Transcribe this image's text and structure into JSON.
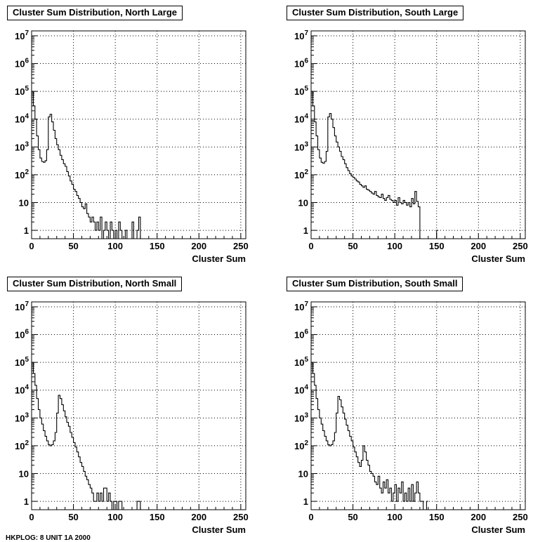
{
  "chart_data": [
    {
      "type": "line",
      "style": "step-histogram",
      "title": "Cluster Sum Distribution, North Large",
      "xlabel": "Cluster Sum",
      "ylabel": "",
      "xlim": [
        0,
        256
      ],
      "ylim": [
        0.5,
        15000000
      ],
      "yscale": "log",
      "grid": true,
      "x_ticks": [
        0,
        50,
        100,
        150,
        200,
        250
      ],
      "y_ticks": [
        1,
        10,
        100,
        1000,
        10000,
        100000,
        1000000,
        10000000
      ],
      "y_tick_labels": [
        "1",
        "10",
        "10^2",
        "10^3",
        "10^4",
        "10^5",
        "10^6",
        "10^7"
      ],
      "x": [
        0,
        2,
        4,
        6,
        8,
        10,
        12,
        14,
        16,
        18,
        20,
        22,
        24,
        26,
        28,
        30,
        32,
        34,
        36,
        38,
        40,
        42,
        44,
        46,
        48,
        50,
        52,
        54,
        56,
        58,
        60,
        62,
        64,
        66,
        68,
        70,
        72,
        74,
        76,
        78,
        80,
        82,
        84,
        86,
        88,
        90,
        92,
        94,
        96,
        98,
        100,
        102,
        104,
        106,
        108,
        110,
        112,
        114,
        116,
        118,
        120,
        122,
        124,
        126,
        128,
        130
      ],
      "y": [
        100000,
        30000,
        10000,
        2500,
        800,
        400,
        300,
        280,
        320,
        800,
        12000,
        15000,
        8000,
        4000,
        2000,
        1200,
        800,
        500,
        350,
        250,
        200,
        130,
        90,
        60,
        45,
        30,
        25,
        18,
        14,
        10,
        7,
        6,
        9,
        4,
        3,
        2,
        3,
        2,
        1,
        2,
        1,
        3,
        0,
        1,
        2,
        1,
        0,
        2,
        1,
        0,
        1,
        0,
        2,
        1,
        0,
        0,
        1,
        0,
        0,
        0,
        2,
        0,
        0,
        1,
        3,
        0
      ]
    },
    {
      "type": "line",
      "style": "step-histogram",
      "title": "Cluster Sum Distribution, South Large",
      "xlabel": "Cluster Sum",
      "ylabel": "",
      "xlim": [
        0,
        256
      ],
      "ylim": [
        0.5,
        15000000
      ],
      "yscale": "log",
      "grid": true,
      "x_ticks": [
        0,
        50,
        100,
        150,
        200,
        250
      ],
      "y_ticks": [
        1,
        10,
        100,
        1000,
        10000,
        100000,
        1000000,
        10000000
      ],
      "y_tick_labels": [
        "1",
        "10",
        "10^2",
        "10^3",
        "10^4",
        "10^5",
        "10^6",
        "10^7"
      ],
      "x": [
        0,
        2,
        4,
        6,
        8,
        10,
        12,
        14,
        16,
        18,
        20,
        22,
        24,
        26,
        28,
        30,
        32,
        34,
        36,
        38,
        40,
        42,
        44,
        46,
        48,
        50,
        52,
        54,
        56,
        58,
        60,
        62,
        64,
        66,
        68,
        70,
        72,
        74,
        76,
        78,
        80,
        82,
        84,
        86,
        88,
        90,
        92,
        94,
        96,
        98,
        100,
        102,
        104,
        106,
        108,
        110,
        112,
        114,
        116,
        118,
        120,
        122,
        124,
        126,
        128,
        130,
        132,
        134,
        136,
        138,
        140,
        142,
        144,
        146,
        148,
        150
      ],
      "y": [
        100000,
        30000,
        8000,
        2500,
        800,
        400,
        280,
        260,
        300,
        700,
        12000,
        16000,
        10000,
        5000,
        2500,
        1500,
        1000,
        700,
        450,
        350,
        250,
        180,
        140,
        110,
        90,
        80,
        70,
        60,
        55,
        45,
        40,
        35,
        40,
        30,
        28,
        25,
        22,
        20,
        25,
        18,
        16,
        15,
        20,
        14,
        12,
        15,
        18,
        13,
        12,
        10,
        12,
        8,
        15,
        10,
        9,
        12,
        10,
        8,
        10,
        7,
        14,
        9,
        25,
        11,
        7,
        0,
        0,
        0,
        0,
        0,
        0,
        0,
        0,
        0,
        0,
        1
      ]
    },
    {
      "type": "line",
      "style": "step-histogram",
      "title": "Cluster Sum Distribution, North Small",
      "xlabel": "Cluster Sum",
      "ylabel": "",
      "xlim": [
        0,
        256
      ],
      "ylim": [
        0.5,
        15000000
      ],
      "yscale": "log",
      "grid": true,
      "x_ticks": [
        0,
        50,
        100,
        150,
        200,
        250
      ],
      "y_ticks": [
        1,
        10,
        100,
        1000,
        10000,
        100000,
        1000000,
        10000000
      ],
      "y_tick_labels": [
        "1",
        "10",
        "10^2",
        "10^3",
        "10^4",
        "10^5",
        "10^6",
        "10^7"
      ],
      "x": [
        0,
        2,
        4,
        6,
        8,
        10,
        12,
        14,
        16,
        18,
        20,
        22,
        24,
        26,
        28,
        30,
        32,
        34,
        36,
        38,
        40,
        42,
        44,
        46,
        48,
        50,
        52,
        54,
        56,
        58,
        60,
        62,
        64,
        66,
        68,
        70,
        72,
        74,
        76,
        78,
        80,
        82,
        84,
        86,
        88,
        90,
        92,
        94,
        96,
        98,
        100,
        102,
        104,
        106,
        108,
        110,
        112,
        114,
        116,
        118,
        120,
        122,
        124,
        126,
        128,
        130
      ],
      "y": [
        100000,
        40000,
        15000,
        5000,
        2000,
        1000,
        600,
        350,
        220,
        150,
        110,
        100,
        110,
        150,
        300,
        1500,
        6500,
        5000,
        3000,
        1800,
        1100,
        700,
        500,
        300,
        200,
        130,
        90,
        60,
        40,
        25,
        18,
        12,
        8,
        6,
        4,
        3,
        2,
        1,
        1,
        2,
        1,
        2,
        1,
        3,
        3,
        1,
        2,
        1,
        0,
        1,
        1,
        0,
        1,
        1,
        0,
        0,
        0,
        0,
        0,
        0,
        0,
        0,
        0,
        1,
        1,
        0
      ]
    },
    {
      "type": "line",
      "style": "step-histogram",
      "title": "Cluster Sum Distribution, South Small",
      "xlabel": "Cluster Sum",
      "ylabel": "",
      "xlim": [
        0,
        256
      ],
      "ylim": [
        0.5,
        15000000
      ],
      "yscale": "log",
      "grid": true,
      "x_ticks": [
        0,
        50,
        100,
        150,
        200,
        250
      ],
      "y_ticks": [
        1,
        10,
        100,
        1000,
        10000,
        100000,
        1000000,
        10000000
      ],
      "y_tick_labels": [
        "1",
        "10",
        "10^2",
        "10^3",
        "10^4",
        "10^5",
        "10^6",
        "10^7"
      ],
      "x": [
        0,
        2,
        4,
        6,
        8,
        10,
        12,
        14,
        16,
        18,
        20,
        22,
        24,
        26,
        28,
        30,
        32,
        34,
        36,
        38,
        40,
        42,
        44,
        46,
        48,
        50,
        52,
        54,
        56,
        58,
        60,
        62,
        64,
        66,
        68,
        70,
        72,
        74,
        76,
        78,
        80,
        82,
        84,
        86,
        88,
        90,
        92,
        94,
        96,
        98,
        100,
        102,
        104,
        106,
        108,
        110,
        112,
        114,
        116,
        118,
        120,
        122,
        124,
        126,
        128,
        130,
        132,
        134,
        136,
        138
      ],
      "y": [
        100000,
        40000,
        15000,
        5000,
        2000,
        1000,
        600,
        350,
        220,
        150,
        110,
        100,
        110,
        150,
        300,
        1500,
        6000,
        4500,
        2500,
        1500,
        900,
        550,
        350,
        220,
        150,
        90,
        60,
        40,
        25,
        18,
        30,
        100,
        60,
        30,
        20,
        12,
        10,
        8,
        5,
        4,
        8,
        3,
        2,
        5,
        3,
        6,
        2,
        3,
        1,
        2,
        4,
        1,
        3,
        2,
        5,
        1,
        2,
        1,
        3,
        1,
        4,
        1,
        2,
        5,
        2,
        1,
        1,
        0,
        0,
        1
      ]
    }
  ],
  "footer_text": "HKPLOG: 8 UNIT 1A 2000"
}
